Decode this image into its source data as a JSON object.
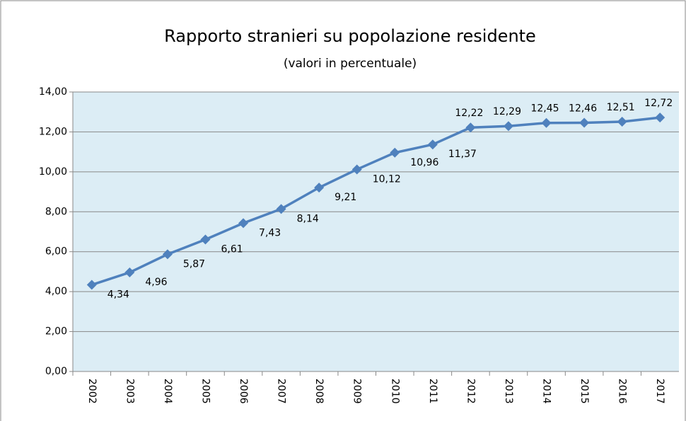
{
  "chart_data": {
    "type": "line",
    "title": "Rapporto stranieri su popolazione residente",
    "subtitle": "(valori in percentuale)",
    "categories": [
      "2002",
      "2003",
      "2004",
      "2005",
      "2006",
      "2007",
      "2008",
      "2009",
      "2010",
      "2011",
      "2012",
      "2013",
      "2014",
      "2015",
      "2016",
      "2017"
    ],
    "values": [
      4.34,
      4.96,
      5.87,
      6.61,
      7.43,
      8.14,
      9.21,
      10.12,
      10.96,
      11.37,
      12.22,
      12.29,
      12.45,
      12.46,
      12.51,
      12.72
    ],
    "value_labels": [
      "4,34",
      "4,96",
      "5,87",
      "6,61",
      "7,43",
      "8,14",
      "9,21",
      "10,12",
      "10,96",
      "11,37",
      "12,22",
      "12,29",
      "12,45",
      "12,46",
      "12,51",
      "12,72"
    ],
    "color": "#4f81bd",
    "ylim": [
      0,
      14
    ],
    "yticks": [
      {
        "value": 0,
        "label": "0,00"
      },
      {
        "value": 2,
        "label": "2,00"
      },
      {
        "value": 4,
        "label": "4,00"
      },
      {
        "value": 6,
        "label": "6,00"
      },
      {
        "value": 8,
        "label": "8,00"
      },
      {
        "value": 10,
        "label": "10,00"
      },
      {
        "value": 12,
        "label": "12,00"
      },
      {
        "value": 14,
        "label": "14,00"
      }
    ],
    "grid": true
  }
}
